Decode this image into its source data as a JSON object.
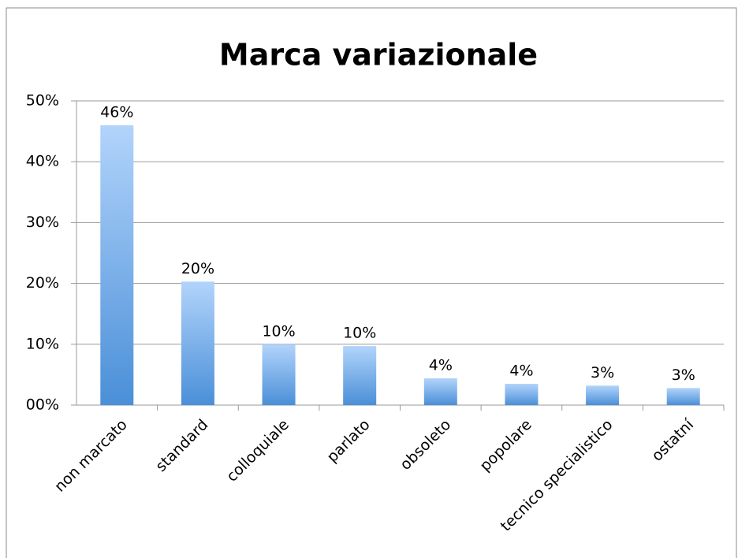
{
  "chart_data": {
    "type": "bar",
    "title": "Marca variazionale",
    "categories": [
      "non marcato",
      "standard",
      "colloquiale",
      "parlato",
      "obsoleto",
      "popolare",
      "tecnico specialistico",
      "ostatní"
    ],
    "values": [
      46,
      20.3,
      10,
      9.7,
      4.4,
      3.5,
      3.2,
      2.8
    ],
    "value_labels": [
      "46%",
      "20%",
      "10%",
      "10%",
      "4%",
      "4%",
      "3%",
      "3%"
    ],
    "gradient": [
      "#b2d4fb",
      "#4a8fd8"
    ],
    "ylim": [
      0,
      50
    ],
    "yticks": [
      {
        "value": 0,
        "label": "00%"
      },
      {
        "value": 10,
        "label": "10%"
      },
      {
        "value": 20,
        "label": "20%"
      },
      {
        "value": 30,
        "label": "30%"
      },
      {
        "value": 40,
        "label": "40%"
      },
      {
        "value": 50,
        "label": "50%"
      }
    ],
    "grid": true
  }
}
